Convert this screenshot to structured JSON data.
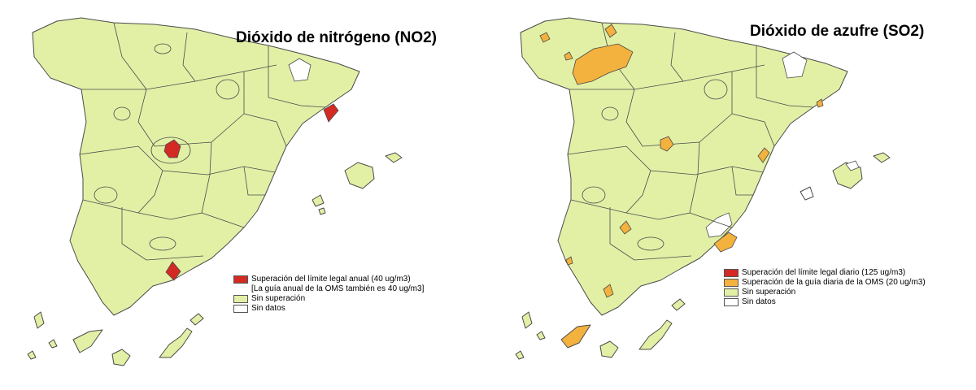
{
  "colors": {
    "exceed_legal": "#d42a24",
    "exceed_who": "#f3b13d",
    "no_exceed": "#e2f0a6",
    "no_data": "#ffffff",
    "outline": "#4a4a4a"
  },
  "maps": [
    {
      "title": "Dióxido de nitrógeno (NO2)",
      "legend": [
        {
          "label": "Superación del límite legal anual (40 ug/m3)",
          "color": "#d42a24"
        },
        {
          "label": "[La guía anual de la OMS también es 40 ug/m3]",
          "color": null
        },
        {
          "label": "Sin superación",
          "color": "#e2f0a6"
        },
        {
          "label": "Sin datos",
          "color": "#ffffff"
        }
      ],
      "zones": [
        {
          "region": "Madrid",
          "status": "exceed_legal"
        },
        {
          "region": "Barcelona",
          "status": "exceed_legal"
        },
        {
          "region": "Granada",
          "status": "exceed_legal"
        },
        {
          "region": "Pyrenees (Lleida)",
          "status": "no_data"
        }
      ]
    },
    {
      "title": "Dióxido de azufre (SO2)",
      "legend": [
        {
          "label": "Superación del límite legal diario (125 ug/m3)",
          "color": "#d42a24"
        },
        {
          "label": "Superación de la guía diaria de la OMS (20 ug/m3)",
          "color": "#f3b13d"
        },
        {
          "label": "Sin superación",
          "color": "#e2f0a6"
        },
        {
          "label": "Sin datos",
          "color": "#ffffff"
        }
      ],
      "zones": [
        {
          "region": "León / Asturias",
          "status": "exceed_who"
        },
        {
          "region": "Cantabria coast",
          "status": "exceed_who"
        },
        {
          "region": "Galicia coast",
          "status": "exceed_who"
        },
        {
          "region": "Madrid (south-west)",
          "status": "exceed_who"
        },
        {
          "region": "Castellón",
          "status": "exceed_who"
        },
        {
          "region": "Tarragona",
          "status": "exceed_who"
        },
        {
          "region": "Murcia / Cartagena",
          "status": "exceed_who"
        },
        {
          "region": "Córdoba",
          "status": "exceed_who"
        },
        {
          "region": "Campo de Gibraltar",
          "status": "exceed_who"
        },
        {
          "region": "Huelva",
          "status": "exceed_who"
        },
        {
          "region": "Tenerife",
          "status": "exceed_who"
        },
        {
          "region": "Pyrenees (Lleida)",
          "status": "no_data"
        },
        {
          "region": "Alicante",
          "status": "no_data"
        },
        {
          "region": "Mallorca north",
          "status": "no_data"
        }
      ]
    }
  ]
}
